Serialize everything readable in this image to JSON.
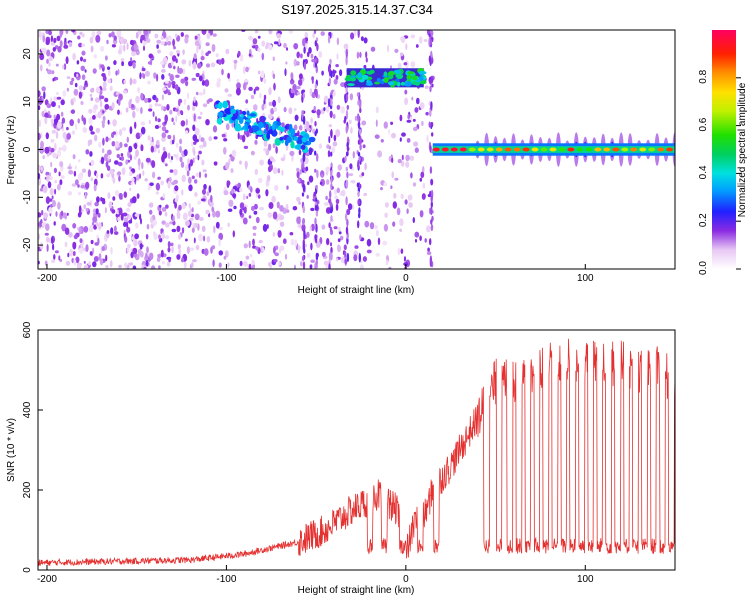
{
  "chart_data": [
    {
      "type": "heatmap",
      "title": "S197.2025.315.14.37.C34",
      "xlabel": "Height of straight line (km)",
      "ylabel": "Frequency (Hz)",
      "xlim": [
        -205,
        150
      ],
      "ylim": [
        -25,
        25
      ],
      "xticks": [
        -200,
        -100,
        0,
        100
      ],
      "yticks": [
        -20,
        -10,
        0,
        10,
        20
      ],
      "colorbar": {
        "label": "Normalized spectral amplitude",
        "range": [
          0,
          1
        ],
        "ticks": [
          0.0,
          0.2,
          0.4,
          0.6,
          0.8
        ]
      },
      "features": [
        {
          "name": "noise-field",
          "x_range": [
            -205,
            15
          ],
          "freq_range": [
            -25,
            25
          ],
          "amplitude": 0.15
        },
        {
          "name": "diagonal-band",
          "x_range": [
            -105,
            -52
          ],
          "freq_range": [
            0,
            9
          ],
          "amplitude": 0.35
        },
        {
          "name": "upper-band",
          "x_range": [
            -33,
            10
          ],
          "freq_range": [
            13,
            17
          ],
          "amplitude": 0.4
        },
        {
          "name": "main-line",
          "x_range": [
            15,
            150
          ],
          "freq": 0,
          "amplitude": 1.0
        }
      ]
    },
    {
      "type": "line",
      "xlabel": "Height of straight line (km)",
      "ylabel": "SNR (10 * v/v)",
      "xlim": [
        -205,
        150
      ],
      "ylim": [
        0,
        600
      ],
      "xticks": [
        -200,
        -100,
        0,
        100
      ],
      "yticks": [
        0,
        200,
        400,
        600
      ],
      "series": [
        {
          "name": "SNR",
          "color": "#e53030",
          "knots": {
            "x": [
              -205,
              -120,
              -90,
              -60,
              -45,
              -30,
              -15,
              -5,
              0,
              5,
              10,
              15,
              25,
              35,
              45,
              50,
              60,
              70,
              80,
              90,
              100,
              110,
              120,
              130,
              140,
              150
            ],
            "y": [
              18,
              25,
              40,
              70,
              100,
              150,
              190,
              150,
              40,
              120,
              130,
              200,
              260,
              340,
              420,
              470,
              480,
              470,
              520,
              520,
              530,
              510,
              520,
              500,
              500,
              470
            ]
          },
          "dips": [
            -20,
            -12,
            -2,
            8,
            17,
            45,
            52,
            58,
            63,
            68,
            73,
            78,
            83,
            88,
            93,
            98,
            103,
            108,
            113,
            118,
            123,
            128,
            133,
            138,
            143,
            148
          ]
        }
      ]
    }
  ]
}
